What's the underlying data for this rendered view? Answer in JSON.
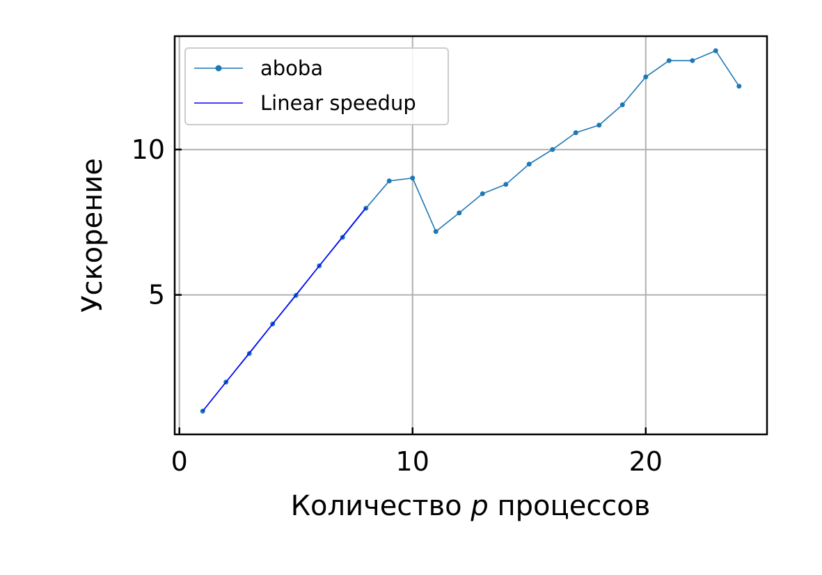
{
  "chart_data": {
    "type": "line",
    "xlabel": "Количество p процессов",
    "xlabel_parts": {
      "before": "Количество ",
      "var": "p",
      "after": " процессов"
    },
    "ylabel": "Ускорение",
    "xlim": [
      -0.2,
      25.2
    ],
    "ylim": [
      0.2,
      13.9
    ],
    "x_ticks": [
      0,
      10,
      20
    ],
    "y_ticks": [
      5,
      10
    ],
    "grid": true,
    "legend_position": "upper-left",
    "series": [
      {
        "name": "aboba",
        "color": "#1f77b4",
        "marker": "dot",
        "x": [
          1,
          2,
          3,
          4,
          5,
          6,
          7,
          8,
          9,
          10,
          11,
          12,
          13,
          14,
          15,
          16,
          17,
          18,
          19,
          20,
          21,
          22,
          23,
          24
        ],
        "y": [
          1.0,
          2.0,
          2.98,
          4.0,
          4.98,
          6.0,
          6.98,
          7.98,
          8.92,
          9.02,
          7.18,
          7.82,
          8.48,
          8.8,
          9.5,
          10.0,
          10.58,
          10.84,
          11.54,
          12.5,
          13.06,
          13.06,
          13.4,
          12.18
        ]
      },
      {
        "name": "Linear speedup",
        "color": "#0000ff",
        "marker": "none",
        "x": [
          1,
          8
        ],
        "y": [
          1,
          8
        ]
      }
    ]
  }
}
